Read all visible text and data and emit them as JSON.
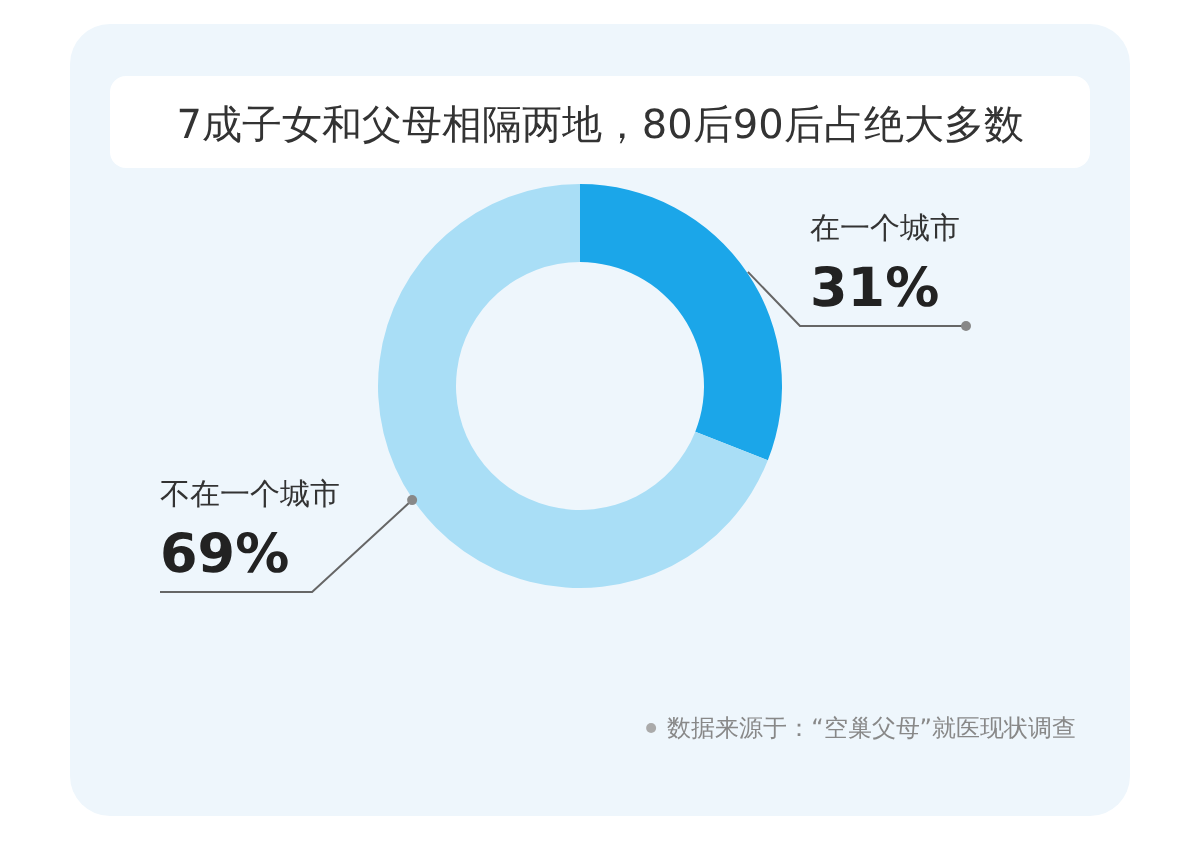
{
  "chart_data": {
    "type": "donut",
    "title": "7成子女和父母相隔两地，80后90后占绝大多数",
    "categories": [
      "在一个城市",
      "不在一个城市"
    ],
    "values": [
      31,
      69
    ],
    "colors": [
      "#1ba6e9",
      "#a9def6"
    ],
    "value_labels": [
      "31%",
      "69%"
    ],
    "annotations": [
      "数据来源于：“空巢父母”就医现状调查"
    ]
  }
}
